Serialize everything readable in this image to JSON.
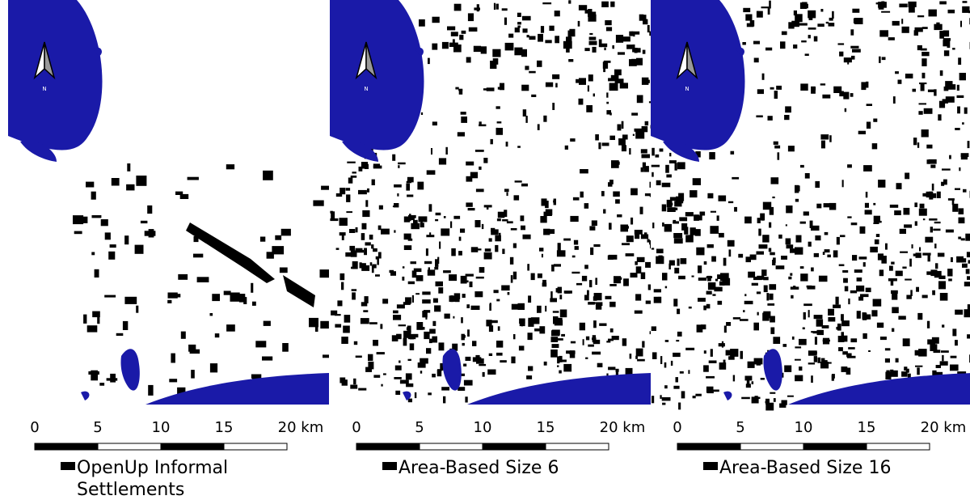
{
  "panels": [
    {
      "north": "N",
      "scale_labels": [
        "0",
        "5",
        "10",
        "15",
        "20 km"
      ],
      "legend": "OpenUp Informal Settlements"
    },
    {
      "north": "N",
      "scale_labels": [
        "0",
        "5",
        "10",
        "15",
        "20 km"
      ],
      "legend": "Area-Based Size 6"
    },
    {
      "north": "N",
      "scale_labels": [
        "0",
        "5",
        "10",
        "15",
        "20 km"
      ],
      "legend": "Area-Based Size 16"
    }
  ]
}
